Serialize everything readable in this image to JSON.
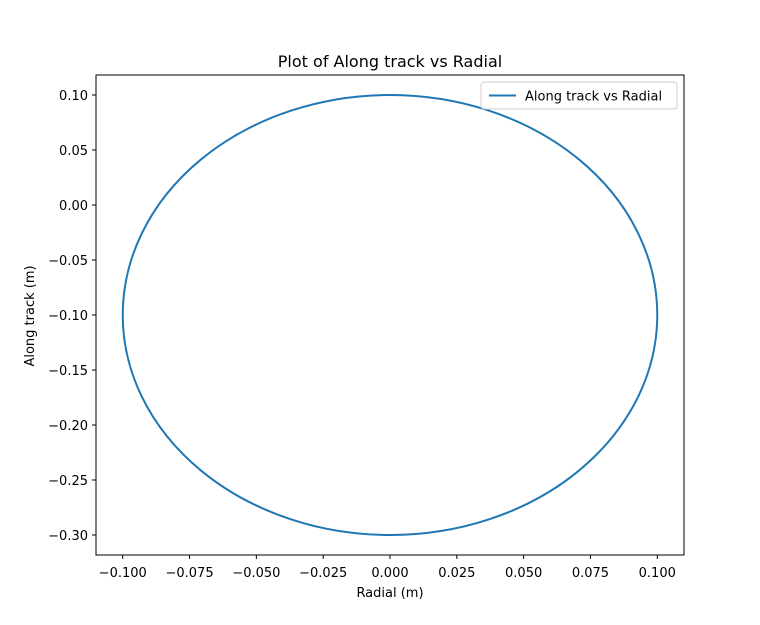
{
  "chart_data": {
    "type": "line",
    "title": "Plot of Along track vs Radial",
    "xlabel": "Radial (m)",
    "ylabel": "Along track (m)",
    "xlim": [
      -0.11,
      0.11
    ],
    "ylim": [
      -0.3182,
      0.1182
    ],
    "x_ticks": [
      -0.1,
      -0.075,
      -0.05,
      -0.025,
      0.0,
      0.025,
      0.05,
      0.075,
      0.1
    ],
    "x_tick_labels": [
      "−0.100",
      "−0.075",
      "−0.050",
      "−0.025",
      "0.000",
      "0.025",
      "0.050",
      "0.075",
      "0.100"
    ],
    "y_ticks": [
      0.1,
      0.05,
      0.0,
      -0.05,
      -0.1,
      -0.15,
      -0.2,
      -0.25,
      -0.3
    ],
    "y_tick_labels": [
      "0.10",
      "0.05",
      "0.00",
      "−0.05",
      "−0.10",
      "−0.15",
      "−0.20",
      "−0.25",
      "−0.30"
    ],
    "grid": false,
    "legend_position": "top-right",
    "series": [
      {
        "name": "Along track vs Radial",
        "color": "#1f77b4",
        "x": [
          0.0,
          0.05,
          0.0866,
          0.1,
          0.0866,
          0.05,
          0.0,
          -0.05,
          -0.0866,
          -0.1,
          -0.0866,
          -0.05,
          0.0
        ],
        "y": [
          0.1,
          0.0732,
          0.0,
          -0.1,
          -0.2,
          -0.2732,
          -0.3,
          -0.2732,
          -0.2,
          -0.1,
          0.0,
          0.0732,
          0.1
        ]
      }
    ]
  }
}
